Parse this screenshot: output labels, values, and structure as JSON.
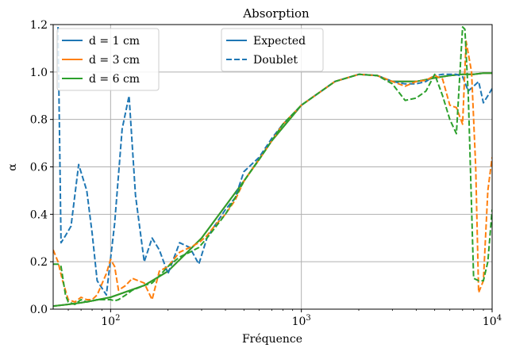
{
  "chart_data": {
    "type": "line",
    "title": "Absorption",
    "xlabel": "Fréquence",
    "ylabel": "α",
    "xscale": "log",
    "xlim": [
      50,
      10000
    ],
    "ylim": [
      0,
      1.2
    ],
    "grid": true,
    "x_ticks": [
      {
        "value": 100,
        "base": "10",
        "exp": "2"
      },
      {
        "value": 1000,
        "base": "10",
        "exp": "3"
      },
      {
        "value": 10000,
        "base": "10",
        "exp": "4"
      }
    ],
    "y_ticks": [
      0.0,
      0.2,
      0.4,
      0.6,
      0.8,
      1.0,
      1.2
    ],
    "y_tick_labels": [
      "0.0",
      "0.2",
      "0.4",
      "0.6",
      "0.8",
      "1.0",
      "1.2"
    ],
    "color_legend": {
      "placement": "upper left",
      "entries": [
        {
          "label": "d = 1 cm",
          "color": "#1f77b4"
        },
        {
          "label": "d = 3 cm",
          "color": "#ff7f0e"
        },
        {
          "label": "d = 6 cm",
          "color": "#2ca02c"
        }
      ]
    },
    "style_legend": {
      "placement": "upper center",
      "entries": [
        {
          "label": "Expected",
          "style": "solid",
          "color": "#1f77b4"
        },
        {
          "label": "Doublet",
          "style": "dashed",
          "color": "#1f77b4"
        }
      ]
    },
    "series": [
      {
        "name": "d = 1 cm",
        "style": "solid",
        "color": "#1f77b4",
        "x": [
          50,
          60,
          70,
          80,
          100,
          150,
          200,
          300,
          500,
          700,
          1000,
          1500,
          2000,
          2500,
          3000,
          4000,
          5000,
          6000,
          7000,
          8000,
          9000,
          10000
        ],
        "y": [
          0.013,
          0.02,
          0.027,
          0.035,
          0.05,
          0.1,
          0.16,
          0.3,
          0.54,
          0.71,
          0.86,
          0.96,
          0.99,
          0.985,
          0.96,
          0.96,
          0.975,
          0.985,
          0.99,
          0.99,
          0.995,
          0.995
        ]
      },
      {
        "name": "d = 3 cm",
        "style": "solid",
        "color": "#ff7f0e",
        "x": [
          50,
          60,
          70,
          80,
          100,
          150,
          200,
          300,
          500,
          700,
          1000,
          1500,
          2000,
          2500,
          3000,
          4000,
          5000,
          6000,
          7000,
          8000,
          9000,
          10000
        ],
        "y": [
          0.013,
          0.02,
          0.027,
          0.035,
          0.05,
          0.1,
          0.16,
          0.3,
          0.54,
          0.71,
          0.86,
          0.96,
          0.99,
          0.985,
          0.96,
          0.96,
          0.975,
          0.985,
          0.99,
          0.99,
          0.995,
          0.995
        ]
      },
      {
        "name": "d = 6 cm",
        "style": "solid",
        "color": "#2ca02c",
        "x": [
          50,
          60,
          70,
          80,
          100,
          150,
          200,
          300,
          500,
          700,
          1000,
          1500,
          2000,
          2500,
          3000,
          4000,
          5000,
          6000,
          7000,
          8000,
          9000,
          10000
        ],
        "y": [
          0.013,
          0.02,
          0.027,
          0.035,
          0.05,
          0.1,
          0.16,
          0.3,
          0.54,
          0.71,
          0.86,
          0.96,
          0.99,
          0.985,
          0.96,
          0.96,
          0.975,
          0.985,
          0.99,
          0.99,
          0.995,
          0.995
        ]
      },
      {
        "name": "d = 1 cm",
        "style": "dashed",
        "color": "#1f77b4",
        "x": [
          53,
          55,
          58,
          62,
          68,
          75,
          80,
          85,
          95,
          105,
          115,
          125,
          135,
          150,
          165,
          180,
          200,
          230,
          260,
          290,
          320,
          350,
          400,
          450,
          500,
          600,
          700,
          800,
          1000,
          1500,
          2000,
          2500,
          3000,
          3500,
          4000,
          4500,
          5000,
          5500,
          6000,
          6500,
          7000,
          7500,
          8000,
          8500,
          9000,
          9500,
          10000
        ],
        "y": [
          1.19,
          0.28,
          0.31,
          0.35,
          0.61,
          0.5,
          0.32,
          0.12,
          0.06,
          0.36,
          0.76,
          0.9,
          0.48,
          0.2,
          0.3,
          0.25,
          0.15,
          0.28,
          0.26,
          0.19,
          0.3,
          0.35,
          0.42,
          0.47,
          0.58,
          0.64,
          0.72,
          0.78,
          0.86,
          0.96,
          0.99,
          0.985,
          0.96,
          0.95,
          0.95,
          0.96,
          0.985,
          0.99,
          0.99,
          0.99,
          0.98,
          0.92,
          0.94,
          0.96,
          0.87,
          0.9,
          0.93
        ]
      },
      {
        "name": "d = 3 cm",
        "style": "dashed",
        "color": "#ff7f0e",
        "x": [
          50,
          53,
          56,
          60,
          65,
          70,
          75,
          80,
          85,
          95,
          100,
          105,
          110,
          120,
          130,
          150,
          165,
          180,
          200,
          230,
          260,
          290,
          320,
          350,
          400,
          450,
          500,
          600,
          700,
          800,
          1000,
          1500,
          2000,
          2500,
          3000,
          3500,
          4000,
          4500,
          5000,
          5500,
          6000,
          6500,
          7000,
          7300,
          7800,
          8200,
          8500,
          9000,
          9500,
          10000
        ],
        "y": [
          0.25,
          0.2,
          0.12,
          0.04,
          0.03,
          0.05,
          0.04,
          0.04,
          0.06,
          0.15,
          0.21,
          0.18,
          0.08,
          0.1,
          0.13,
          0.11,
          0.04,
          0.16,
          0.18,
          0.24,
          0.26,
          0.28,
          0.31,
          0.35,
          0.4,
          0.46,
          0.54,
          0.63,
          0.71,
          0.78,
          0.86,
          0.96,
          0.99,
          0.985,
          0.96,
          0.94,
          0.96,
          0.965,
          0.985,
          0.97,
          0.86,
          0.85,
          0.78,
          1.13,
          1.0,
          0.6,
          0.07,
          0.12,
          0.5,
          0.64
        ]
      },
      {
        "name": "d = 6 cm",
        "style": "dashed",
        "color": "#2ca02c",
        "x": [
          50,
          53,
          55,
          58,
          60,
          65,
          70,
          75,
          80,
          85,
          95,
          100,
          105,
          110,
          120,
          130,
          150,
          165,
          180,
          200,
          230,
          260,
          290,
          320,
          350,
          400,
          450,
          500,
          600,
          700,
          800,
          1000,
          1500,
          2000,
          2500,
          3000,
          3500,
          4000,
          4500,
          5000,
          5500,
          6000,
          6500,
          7000,
          7200,
          7500,
          8000,
          8500,
          9000,
          9500,
          10000
        ],
        "y": [
          0.19,
          0.19,
          0.18,
          0.06,
          0.03,
          0.02,
          0.04,
          0.03,
          0.035,
          0.04,
          0.04,
          0.04,
          0.035,
          0.04,
          0.06,
          0.08,
          0.1,
          0.11,
          0.14,
          0.18,
          0.22,
          0.24,
          0.26,
          0.3,
          0.34,
          0.4,
          0.47,
          0.54,
          0.63,
          0.71,
          0.78,
          0.86,
          0.96,
          0.99,
          0.985,
          0.95,
          0.88,
          0.89,
          0.92,
          0.99,
          0.9,
          0.8,
          0.74,
          1.19,
          1.18,
          0.9,
          0.13,
          0.12,
          0.12,
          0.2,
          0.42
        ]
      }
    ]
  }
}
